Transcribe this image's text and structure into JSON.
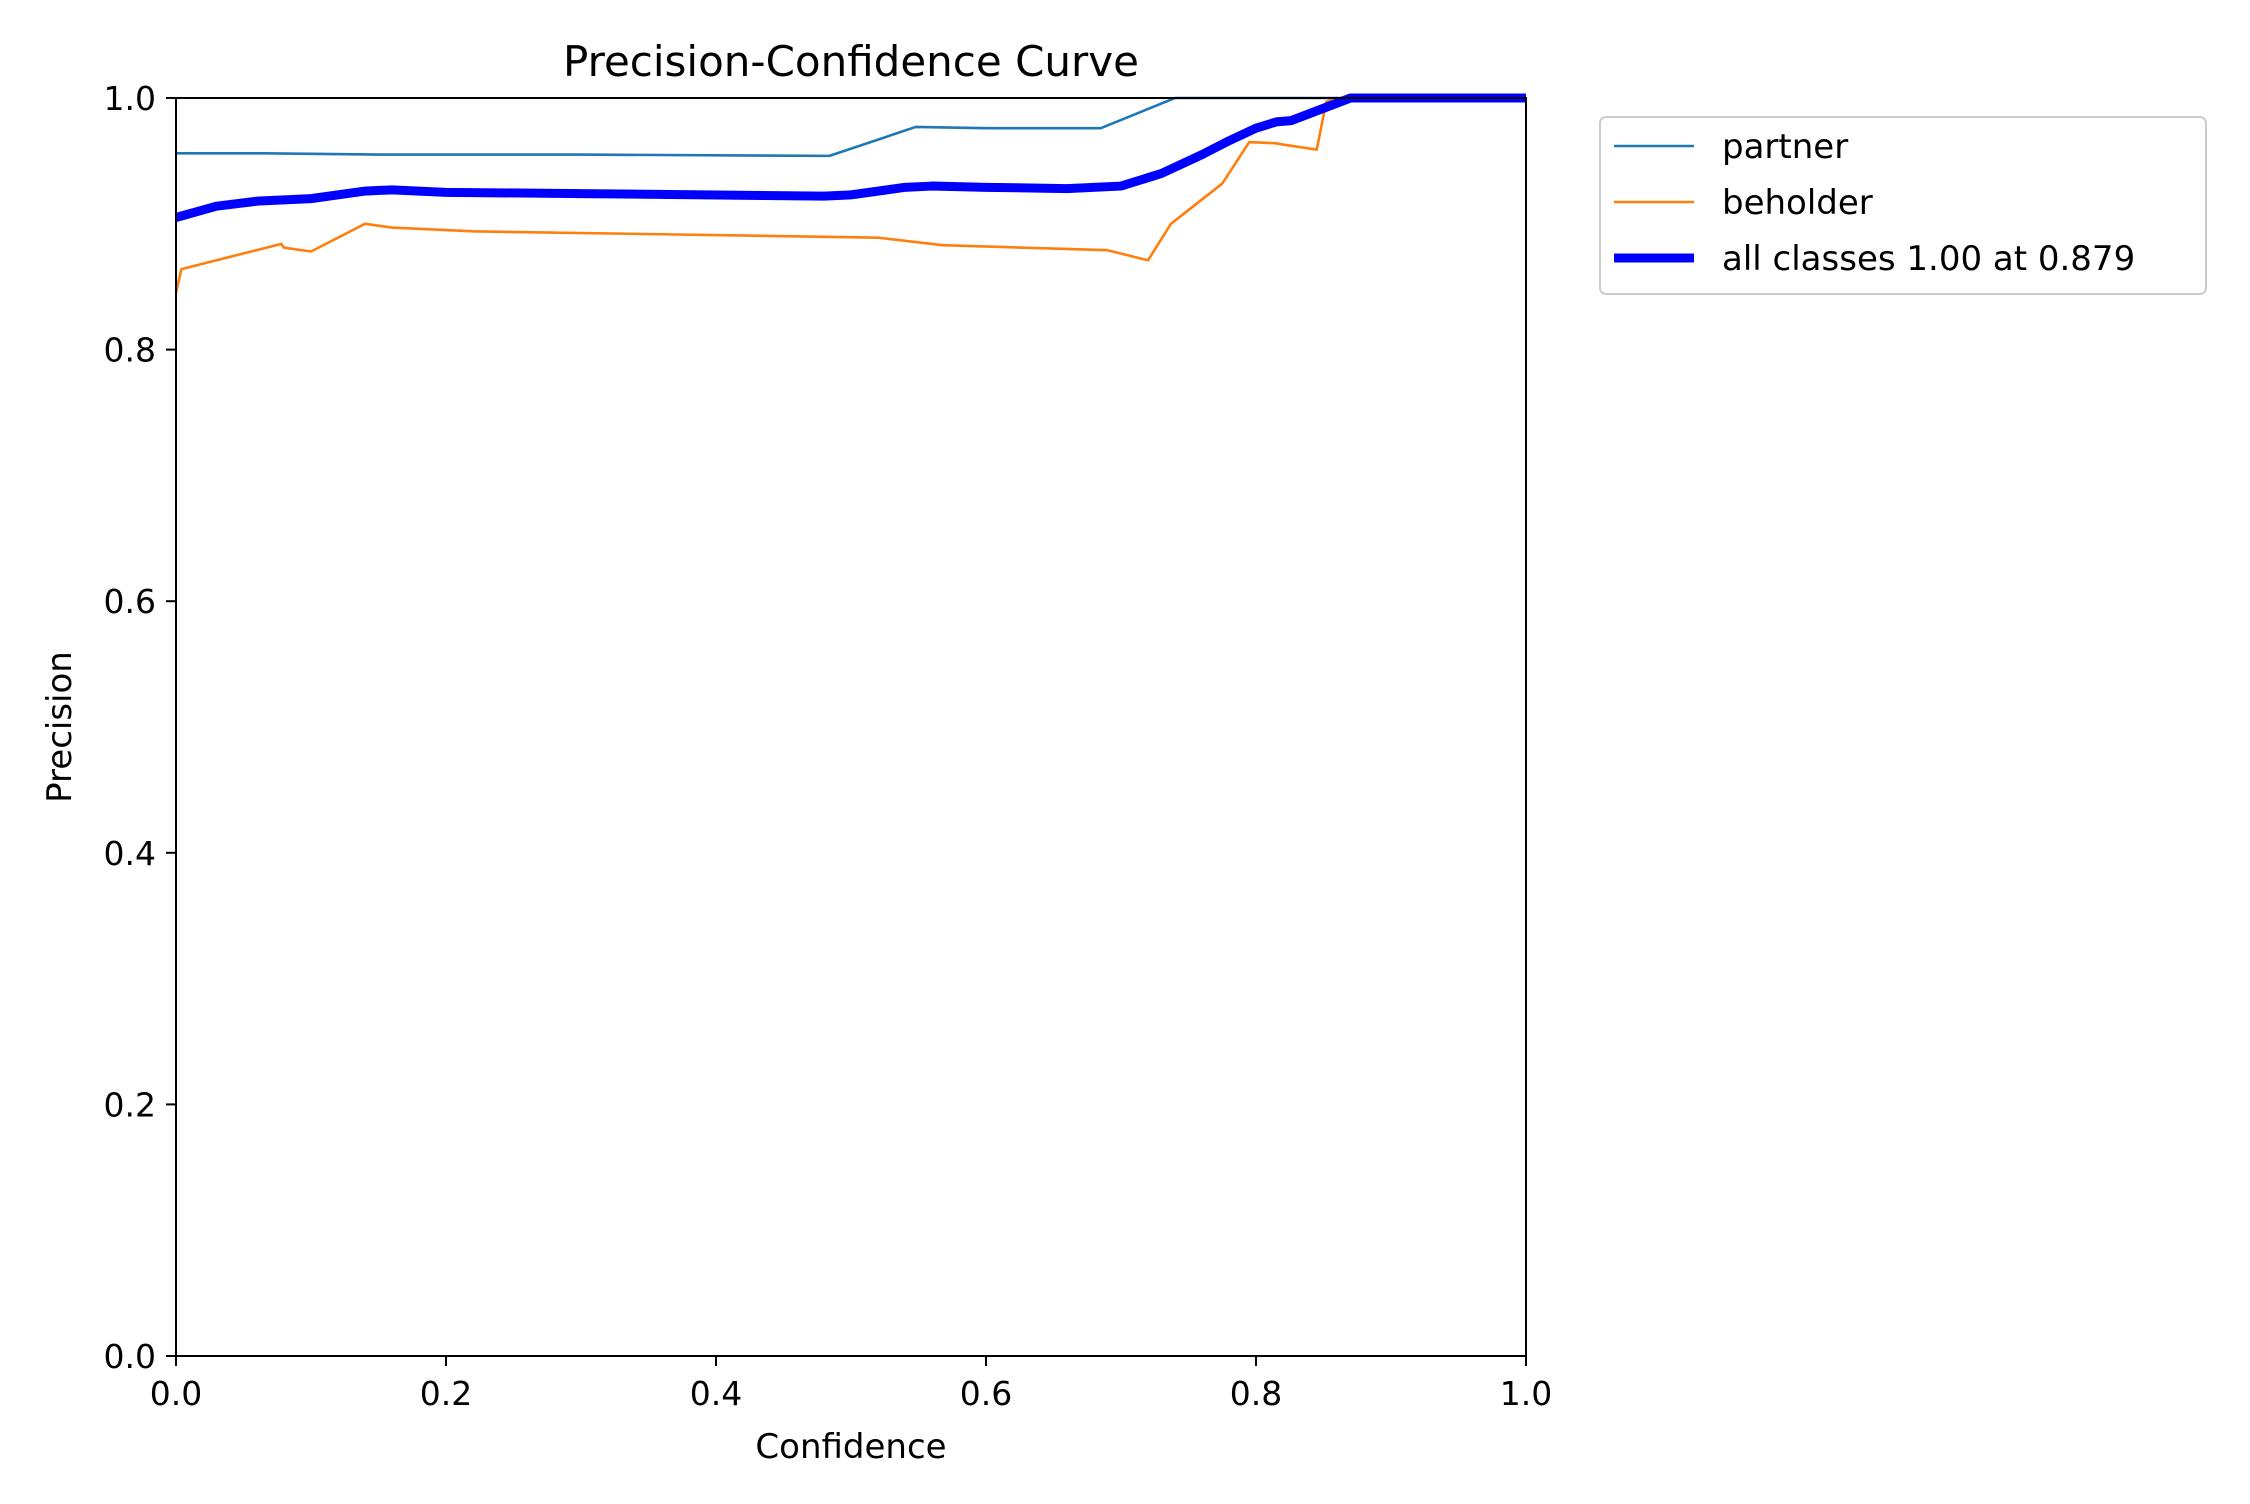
{
  "chart_data": {
    "type": "line",
    "title": "Precision-Confidence Curve",
    "xlabel": "Confidence",
    "ylabel": "Precision",
    "xlim": [
      0,
      1
    ],
    "ylim": [
      0,
      1
    ],
    "xticks": [
      "0.0",
      "0.2",
      "0.4",
      "0.6",
      "0.8",
      "1.0"
    ],
    "yticks": [
      "0.0",
      "0.2",
      "0.4",
      "0.6",
      "0.8",
      "1.0"
    ],
    "grid": false,
    "legend_position": "outside-top-right",
    "series": [
      {
        "name": "partner",
        "color": "#1f77b4",
        "width": "thin",
        "points": [
          [
            0.0,
            0.956
          ],
          [
            0.065,
            0.956
          ],
          [
            0.15,
            0.955
          ],
          [
            0.3,
            0.955
          ],
          [
            0.484,
            0.954
          ],
          [
            0.548,
            0.977
          ],
          [
            0.6,
            0.976
          ],
          [
            0.685,
            0.976
          ],
          [
            0.74,
            1.0
          ],
          [
            1.0,
            1.0
          ]
        ]
      },
      {
        "name": "beholder",
        "color": "#ff7f0e",
        "width": "thin",
        "points": [
          [
            0.0,
            0.845
          ],
          [
            0.004,
            0.864
          ],
          [
            0.078,
            0.884
          ],
          [
            0.08,
            0.881
          ],
          [
            0.1,
            0.878
          ],
          [
            0.14,
            0.9
          ],
          [
            0.16,
            0.897
          ],
          [
            0.22,
            0.894
          ],
          [
            0.52,
            0.889
          ],
          [
            0.568,
            0.883
          ],
          [
            0.69,
            0.879
          ],
          [
            0.72,
            0.871
          ],
          [
            0.737,
            0.9
          ],
          [
            0.775,
            0.932
          ],
          [
            0.795,
            0.965
          ],
          [
            0.815,
            0.964
          ],
          [
            0.82,
            0.963
          ],
          [
            0.845,
            0.959
          ],
          [
            0.852,
            0.997
          ],
          [
            0.86,
            1.0
          ],
          [
            1.0,
            1.0
          ]
        ]
      },
      {
        "name": "all classes 1.00 at 0.879",
        "color": "#0000ff",
        "width": "thick",
        "points": [
          [
            0.0,
            0.905
          ],
          [
            0.03,
            0.914
          ],
          [
            0.06,
            0.918
          ],
          [
            0.1,
            0.92
          ],
          [
            0.14,
            0.926
          ],
          [
            0.16,
            0.927
          ],
          [
            0.2,
            0.925
          ],
          [
            0.3,
            0.924
          ],
          [
            0.48,
            0.922
          ],
          [
            0.5,
            0.923
          ],
          [
            0.54,
            0.929
          ],
          [
            0.56,
            0.93
          ],
          [
            0.6,
            0.929
          ],
          [
            0.66,
            0.928
          ],
          [
            0.7,
            0.93
          ],
          [
            0.73,
            0.94
          ],
          [
            0.76,
            0.955
          ],
          [
            0.78,
            0.966
          ],
          [
            0.8,
            0.976
          ],
          [
            0.815,
            0.981
          ],
          [
            0.826,
            0.982
          ],
          [
            0.87,
            1.0
          ],
          [
            1.0,
            1.0
          ]
        ]
      }
    ]
  }
}
